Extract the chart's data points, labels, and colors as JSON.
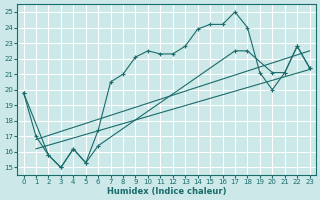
{
  "xlabel": "Humidex (Indice chaleur)",
  "bg_color": "#cce8e8",
  "grid_color": "#ffffff",
  "line_color": "#1a6b6b",
  "xlim": [
    -0.5,
    23.5
  ],
  "ylim": [
    14.5,
    25.5
  ],
  "xticks": [
    0,
    1,
    2,
    3,
    4,
    5,
    6,
    7,
    8,
    9,
    10,
    11,
    12,
    13,
    14,
    15,
    16,
    17,
    18,
    19,
    20,
    21,
    22,
    23
  ],
  "yticks": [
    15,
    16,
    17,
    18,
    19,
    20,
    21,
    22,
    23,
    24,
    25
  ],
  "series1_x": [
    0,
    1,
    2,
    3,
    4,
    5,
    6,
    7,
    8,
    9,
    10,
    11,
    12,
    13,
    14,
    15,
    16,
    17,
    18,
    19,
    20,
    21,
    22,
    23
  ],
  "series1_y": [
    19.8,
    17.0,
    15.8,
    15.0,
    16.2,
    15.3,
    17.4,
    20.5,
    21.0,
    22.1,
    22.5,
    22.3,
    22.3,
    22.8,
    23.9,
    24.2,
    24.2,
    25.0,
    24.0,
    21.1,
    20.0,
    21.1,
    22.8,
    21.4
  ],
  "series2_x": [
    0,
    2,
    3,
    4,
    5,
    6,
    17,
    18,
    20,
    21,
    22,
    23
  ],
  "series2_y": [
    19.8,
    15.8,
    15.0,
    16.2,
    15.3,
    16.4,
    22.5,
    22.5,
    21.1,
    21.1,
    22.8,
    21.4
  ],
  "series3_x": [
    1,
    23
  ],
  "series3_y": [
    16.8,
    22.5
  ],
  "series4_x": [
    1,
    23
  ],
  "series4_y": [
    16.2,
    21.3
  ]
}
